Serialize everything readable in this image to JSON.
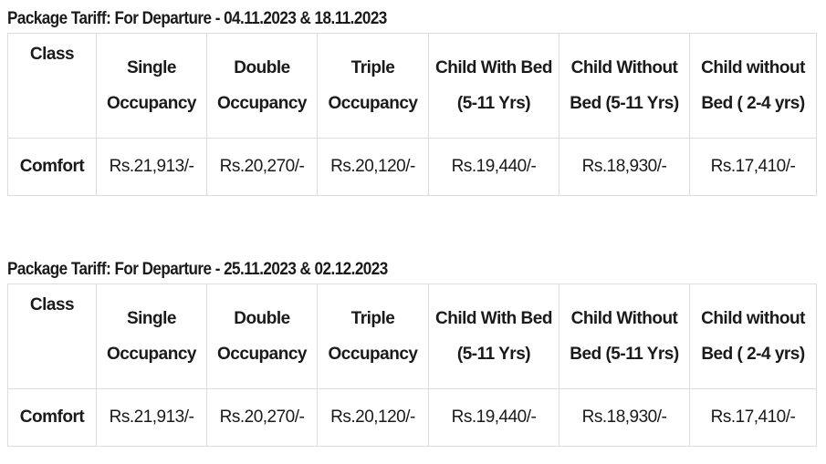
{
  "tables": [
    {
      "title": "Package Tariff: For Departure - 04.11.2023 & 18.11.2023",
      "headers": [
        "Class",
        "Single Occupancy",
        "Double Occupancy",
        "Triple Occupancy",
        "Child With Bed (5-11 Yrs)",
        "Child Without Bed (5-11 Yrs)",
        "Child without Bed ( 2-4 yrs)"
      ],
      "row": [
        "Comfort",
        "Rs.21,913/-",
        "Rs.20,270/-",
        "Rs.20,120/-",
        "Rs.19,440/-",
        "Rs.18,930/-",
        "Rs.17,410/-"
      ]
    },
    {
      "title": "Package Tariff: For Departure - 25.11.2023 & 02.12.2023",
      "headers": [
        "Class",
        "Single Occupancy",
        "Double Occupancy",
        "Triple Occupancy",
        "Child With Bed (5-11 Yrs)",
        "Child Without Bed (5-11 Yrs)",
        "Child without Bed ( 2-4 yrs)"
      ],
      "row": [
        "Comfort",
        "Rs.21,913/-",
        "Rs.20,270/-",
        "Rs.20,120/-",
        "Rs.19,440/-",
        "Rs.18,930/-",
        "Rs.17,410/-"
      ]
    }
  ]
}
